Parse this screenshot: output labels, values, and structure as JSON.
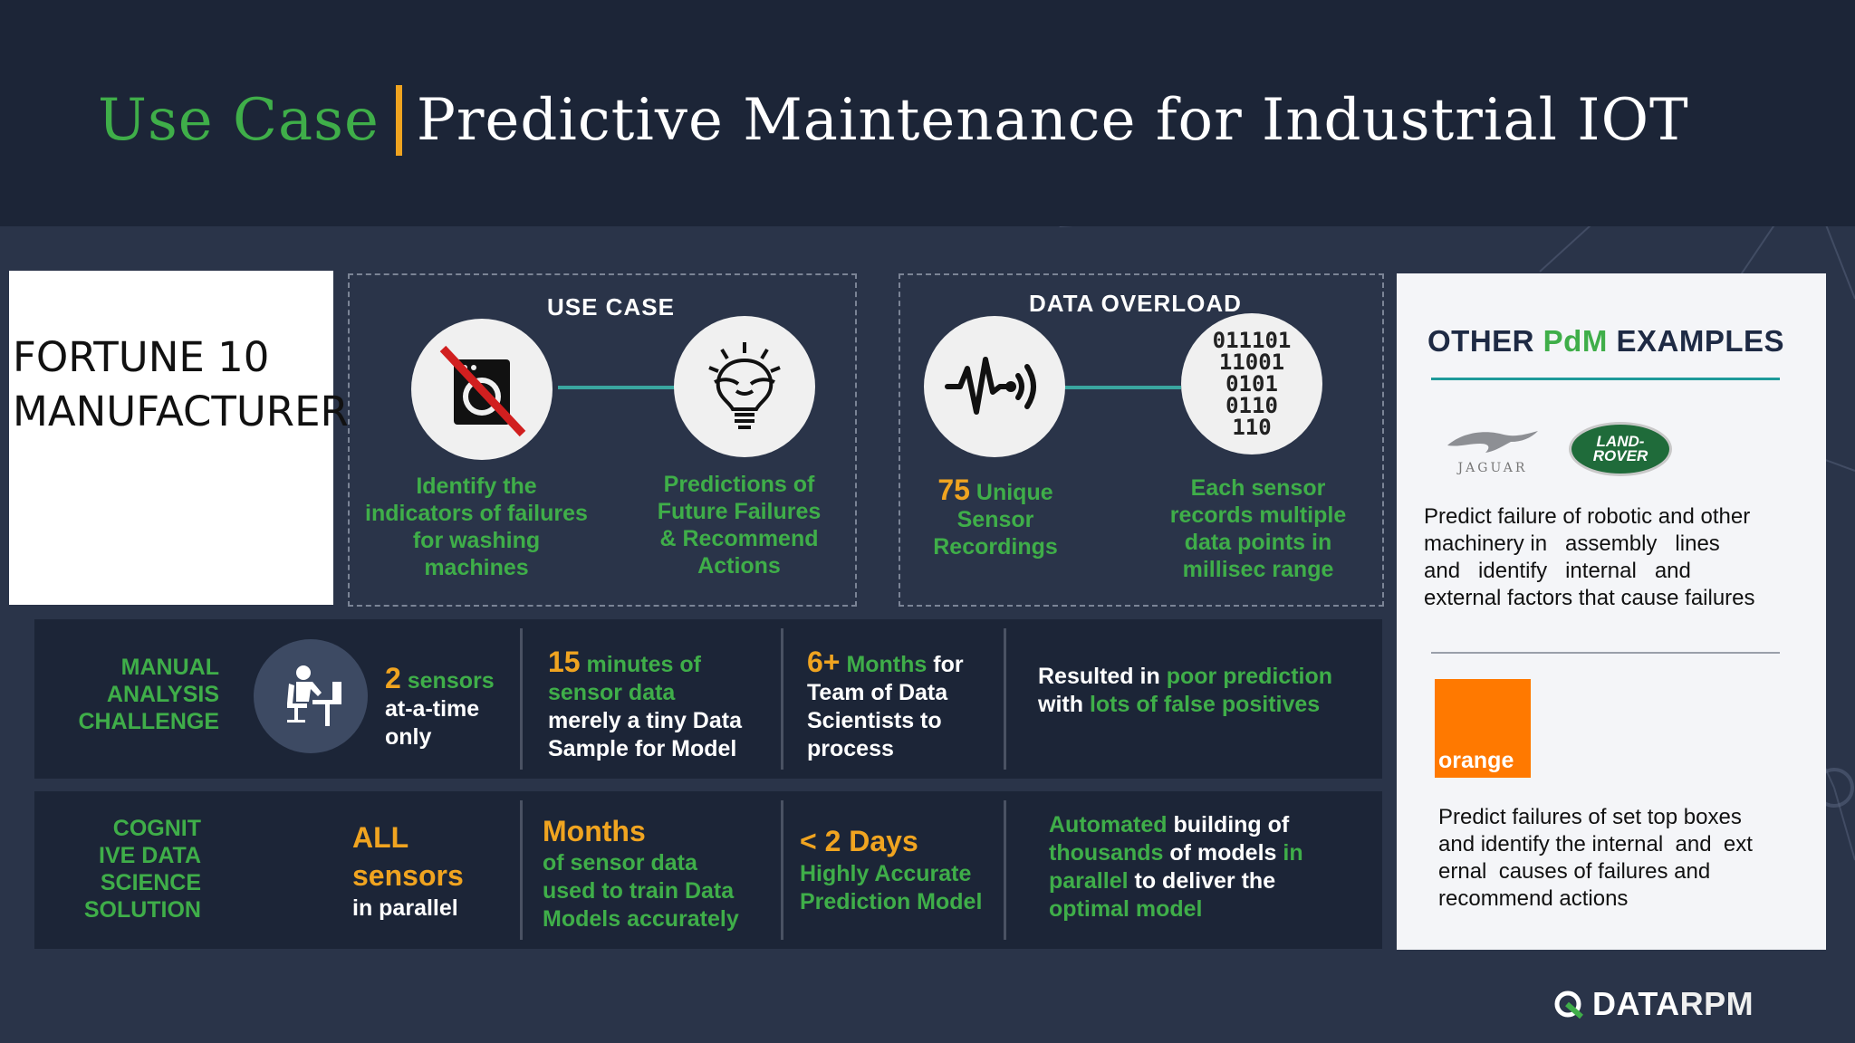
{
  "title": {
    "use_case": "Use Case",
    "main": "Predictive Maintenance for Industrial IOT"
  },
  "fortune": {
    "line1": "FORTUNE 10",
    "line2": "MANUFACTURER"
  },
  "use_case_box": {
    "title": "USE CASE",
    "left_text": [
      "Identify the",
      "indicators of failures",
      "for washing",
      "machines"
    ],
    "right_text": [
      "Predictions of",
      "Future Failures",
      "& Recommend",
      "Actions"
    ]
  },
  "data_overload_box": {
    "title": "DATA OVERLOAD",
    "binary": [
      "011101",
      "11001",
      "0101",
      "0110",
      "110"
    ],
    "left_number": "75",
    "left_text": [
      "Unique",
      "Sensor",
      "Recordings"
    ],
    "right_text": [
      "Each sensor",
      "records multiple",
      "data points in",
      "millisec range"
    ]
  },
  "challenge_row": {
    "label": [
      "MANUAL",
      "ANALYSIS",
      "CHALLENGE"
    ],
    "c1": {
      "num": "2",
      "unit": "sensors",
      "rest": [
        "at-a-time",
        "only"
      ]
    },
    "c2": {
      "num": "15",
      "unit": "minutes",
      "of": "of",
      "l2": "sensor data",
      "l3": "merely a tiny Data",
      "l4": "Sample for Model"
    },
    "c3": {
      "num": "6+",
      "unit": "Months",
      "for": "for",
      "l2": "Team of Data",
      "l3": "Scientists to",
      "l4": "process"
    },
    "c4": {
      "a": "Resulted in",
      "b": "poor prediction",
      "c": "with",
      "d": "lots of false positives"
    }
  },
  "solution_row": {
    "label": [
      "COGNIT",
      "IVE DATA",
      "SCIENCE",
      "SOLUTION"
    ],
    "c1": {
      "l1": "ALL",
      "l2": "sensors",
      "l3": "in parallel"
    },
    "c2": {
      "l1": "Months",
      "l2": "of sensor data",
      "l3": "used to train Data",
      "l4": "Models accurately"
    },
    "c3": {
      "l1": "< 2 Days",
      "l2": "Highly  Accurate",
      "l3": "Prediction Model"
    },
    "c4": {
      "a": "Automated",
      "b": "building  of",
      "c": "thousands",
      "d": "of models",
      "e": "in",
      "f": "parallel",
      "g": "to deliver the",
      "h": "optimal model"
    }
  },
  "side_panel": {
    "title_a": "OTHER",
    "title_b": "PdM",
    "title_c": "EXAMPLES",
    "jaguar_label": "JAGUAR",
    "landrover_label": [
      "LAND-",
      "ROVER"
    ],
    "text1": [
      "Predict failure of robotic and other",
      "machinery in   assembly   lines",
      "and   identify   internal   and",
      "external factors that cause failures"
    ],
    "orange_label": "orange",
    "text2": [
      "Predict failures of set top boxes",
      "and identify the internal  and  ext",
      "ernal  causes of failures and",
      "recommend actions"
    ]
  },
  "brand": {
    "a": "DATA",
    "b": "RPM"
  },
  "colors": {
    "green": "#3fae49",
    "orange": "#f0a420",
    "teal": "#3aa6a0",
    "dark": "#1c2537",
    "bg": "#2a3449"
  }
}
